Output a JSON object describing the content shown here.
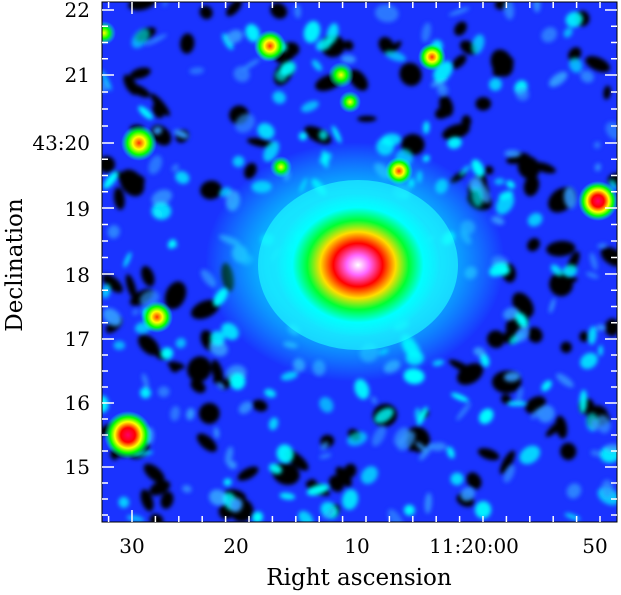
{
  "image": {
    "description_free": true,
    "colormap": [
      "#000000",
      "#0000ff",
      "#00ffff",
      "#00ff00",
      "#ffff00",
      "#ff0000",
      "#ff00ff",
      "#ffffff"
    ]
  },
  "axes": {
    "xlabel": "Right ascension",
    "ylabel": "Declination",
    "x_ticks": [
      "30",
      "20",
      "10",
      "11:20:00",
      "50"
    ],
    "y_ticks": [
      "22",
      "21",
      "43:20",
      "19",
      "18",
      "17",
      "16",
      "15"
    ]
  }
}
